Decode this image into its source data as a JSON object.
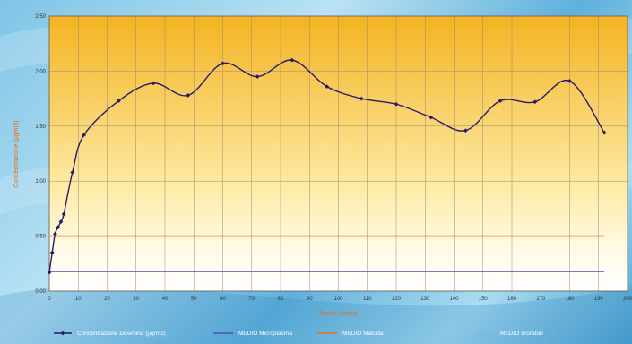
{
  "chart_data": {
    "type": "line",
    "xlabel": "Tempo (minuti)",
    "ylabel": "Concentrazione (µg/m3)",
    "xlim": [
      0,
      200
    ],
    "ylim": [
      0,
      2.5
    ],
    "x_ticks": [
      "0",
      "10",
      "20",
      "30",
      "40",
      "50",
      "60",
      "70",
      "80",
      "90",
      "100",
      "110",
      "120",
      "130",
      "140",
      "150",
      "160",
      "170",
      "180",
      "190",
      "200"
    ],
    "y_ticks": [
      "0,00",
      "0,50",
      "1,00",
      "1,50",
      "2,00",
      "2,50"
    ],
    "grid": true,
    "legend_position": "bottom",
    "series": [
      {
        "name": "Concentrazione Desimina (µg/m3)",
        "color": "#2a1a6e",
        "marker": "diamond",
        "x": [
          0,
          1,
          2,
          3,
          4,
          5,
          8,
          12,
          24,
          36,
          48,
          60,
          72,
          84,
          96,
          108,
          120,
          132,
          144,
          156,
          168,
          180,
          192
        ],
        "y": [
          0.17,
          0.35,
          0.52,
          0.58,
          0.63,
          0.7,
          1.08,
          1.42,
          1.73,
          1.89,
          1.78,
          2.07,
          1.95,
          2.1,
          1.86,
          1.75,
          1.7,
          1.58,
          1.46,
          1.73,
          1.72,
          1.91,
          1.44
        ]
      },
      {
        "name": "MEDIO Microplasma",
        "color": "#5a4ab0",
        "constant": 0.18
      },
      {
        "name": "MEDIO Malcida",
        "color": "#e07820",
        "constant": 0.5
      },
      {
        "name": "MEDIO Irroratori",
        "color": "#7ab8e0",
        "constant": null
      }
    ]
  }
}
